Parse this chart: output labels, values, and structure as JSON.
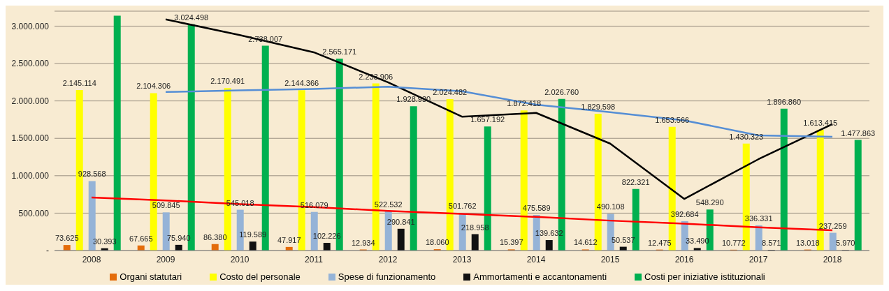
{
  "chart_data": {
    "type": "bar",
    "categories": [
      "2008",
      "2009",
      "2010",
      "2011",
      "2012",
      "2013",
      "2014",
      "2015",
      "2016",
      "2017",
      "2018"
    ],
    "series": [
      {
        "name": "Organi statutari",
        "color": "#e46c0a",
        "values": [
          73625,
          67665,
          86380,
          47917,
          12934,
          18060,
          15397,
          14612,
          12475,
          10772,
          13018
        ],
        "value_labels": [
          "73.625",
          "67.665",
          "86.380",
          "47.917",
          "12.934",
          "18.060",
          "15.397",
          "14.612",
          "12.475",
          "10.772",
          "13.018"
        ]
      },
      {
        "name": "Costo del personale",
        "color": "#ffff00",
        "values": [
          2145114,
          2104306,
          2170491,
          2144366,
          2233906,
          2024482,
          1872418,
          1829598,
          1653566,
          1430323,
          1613415
        ],
        "value_labels": [
          "2.145.114",
          "2.104.306",
          "2.170.491",
          "2.144.366",
          "2.233.906",
          "2.024.482",
          "1.872.418",
          "1.829.598",
          "1.653.566",
          "1.430.323",
          "1.613.415"
        ]
      },
      {
        "name": "Spese di funzionamento",
        "color": "#95b3d7",
        "values": [
          928568,
          509845,
          545018,
          516079,
          522532,
          501762,
          475589,
          490108,
          392684,
          336331,
          237259
        ],
        "value_labels": [
          "928.568",
          "509.845",
          "545.018",
          "516.079",
          "522.532",
          "501.762",
          "475.589",
          "490.108",
          "392.684",
          "336.331",
          "237.259"
        ]
      },
      {
        "name": "Ammortamenti e accantonamenti",
        "color": "#111111",
        "values": [
          30393,
          75940,
          119589,
          102226,
          290841,
          218958,
          139632,
          50537,
          33490,
          8571,
          5970
        ],
        "value_labels": [
          "30.393",
          "75.940",
          "119.589",
          "102.226",
          "290.841",
          "218.958",
          "139.632",
          "50.537",
          "33.490",
          "8.571",
          "5.970"
        ]
      },
      {
        "name": "Costi per iniziative istituzionali",
        "color": "#00b050",
        "values": [
          3140000,
          3024498,
          2738007,
          2565171,
          1928930,
          1657192,
          2026760,
          822321,
          548290,
          1896860,
          1477863
        ],
        "value_labels": [
          null,
          "3.024.498",
          "2.738.007",
          "2.565.171",
          "1.928.930",
          "1.657.192",
          "2.026.760",
          "822.321",
          "548.290",
          "1.896.860",
          "1.477.863"
        ]
      },
      {
        "type": "line",
        "color": "#000000",
        "values": [
          null,
          3090000,
          2880000,
          2650000,
          2250000,
          1790000,
          1840000,
          1430000,
          690000,
          1220000,
          1690000
        ]
      },
      {
        "type": "line",
        "color": "#558ed5",
        "values": [
          null,
          2120000,
          2140000,
          2160000,
          2190000,
          2130000,
          1950000,
          1850000,
          1740000,
          1540000,
          1520000
        ]
      },
      {
        "type": "line",
        "color": "#ff0000",
        "values": [
          710000,
          670000,
          620000,
          580000,
          530000,
          490000,
          450000,
          400000,
          360000,
          310000,
          270000
        ]
      }
    ],
    "ylim": [
      0,
      3200000
    ],
    "yticks": [
      {
        "value": 0,
        "label": "-"
      },
      {
        "value": 500000,
        "label": "500.000"
      },
      {
        "value": 1000000,
        "label": "1.000.000"
      },
      {
        "value": 1500000,
        "label": "1.500.000"
      },
      {
        "value": 2000000,
        "label": "2.000.000"
      },
      {
        "value": 2500000,
        "label": "2.500.000"
      },
      {
        "value": 3000000,
        "label": "3.000.000"
      }
    ],
    "grid": "y",
    "legend": "bottom"
  }
}
